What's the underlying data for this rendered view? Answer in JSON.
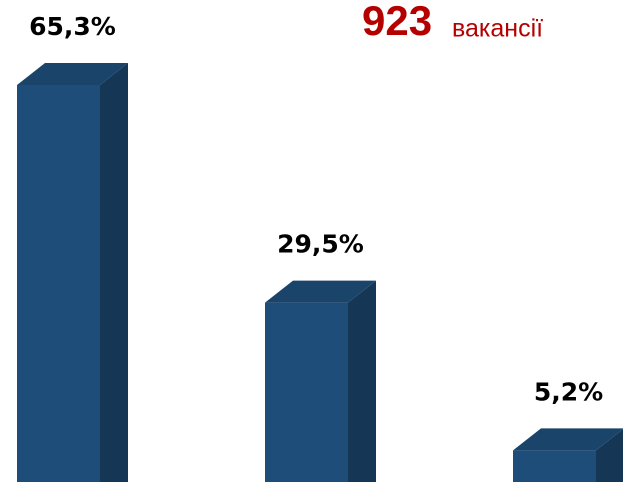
{
  "chart_data": {
    "type": "bar3d",
    "annotations": [
      "923",
      "вакансії"
    ],
    "categories": [
      null,
      null,
      null
    ],
    "values": [
      65.3,
      29.5,
      5.2
    ],
    "value_labels": [
      "65,3%",
      "29,5%",
      "5,2%"
    ],
    "color": "#1f4d7a",
    "annotation_color": "#b50000"
  }
}
